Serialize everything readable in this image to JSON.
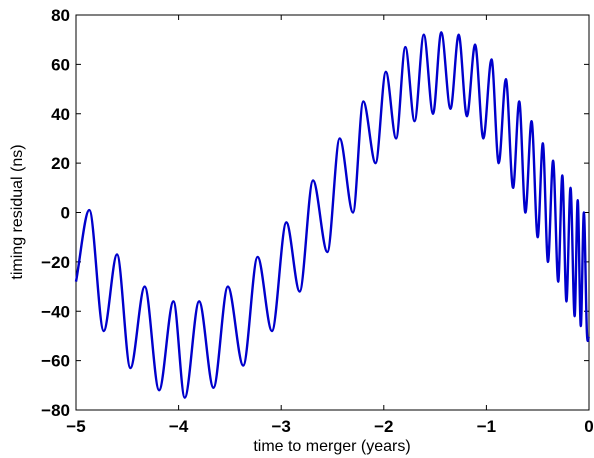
{
  "chart_data": {
    "type": "line",
    "title": "",
    "xlabel": "time to merger (years)",
    "ylabel": "timing residual (ns)",
    "xlim": [
      -5,
      0
    ],
    "ylim": [
      -80,
      80
    ],
    "x_ticks": [
      -5,
      -4,
      -3,
      -2,
      -1,
      0
    ],
    "x_tick_labels": [
      "−5",
      "−4",
      "−3",
      "−2",
      "−1",
      "0"
    ],
    "y_ticks": [
      -80,
      -60,
      -40,
      -20,
      0,
      20,
      40,
      60,
      80
    ],
    "y_tick_labels": [
      "−80",
      "−60",
      "−40",
      "−20",
      "0",
      "20",
      "40",
      "60",
      "80"
    ],
    "grid": false,
    "legend": "none",
    "line_color": "#0000cc",
    "series": [
      {
        "x": [
          -5.0,
          -4.87,
          -4.73,
          -4.6,
          -4.47,
          -4.33,
          -4.19,
          -4.05,
          -3.94,
          -3.8,
          -3.66,
          -3.52,
          -3.37,
          -3.23,
          -3.09,
          -2.95,
          -2.82,
          -2.69,
          -2.55,
          -2.43,
          -2.3,
          -2.2,
          -2.08,
          -1.98,
          -1.88,
          -1.79,
          -1.7,
          -1.61,
          -1.52,
          -1.44,
          -1.35,
          -1.27,
          -1.19,
          -1.11,
          -1.03,
          -0.95,
          -0.88,
          -0.81,
          -0.74,
          -0.68,
          -0.62,
          -0.56,
          -0.5,
          -0.45,
          -0.4,
          -0.35,
          -0.3,
          -0.26,
          -0.22,
          -0.18,
          -0.14,
          -0.11,
          -0.08,
          -0.05,
          -0.02,
          0.0
        ],
        "y": [
          -28,
          1,
          -48,
          -17,
          -63,
          -30,
          -72,
          -36,
          -75,
          -36,
          -71,
          -30,
          -62,
          -18,
          -48,
          -4,
          -32,
          13,
          -16,
          30,
          0,
          45,
          20,
          57,
          30,
          67,
          37,
          72,
          40,
          73,
          42,
          72,
          39,
          68,
          30,
          62,
          20,
          54,
          10,
          45,
          0,
          37,
          -10,
          28,
          -20,
          21,
          -28,
          15,
          -36,
          10,
          -42,
          5,
          -46,
          0,
          -49,
          -51
        ]
      }
    ]
  }
}
